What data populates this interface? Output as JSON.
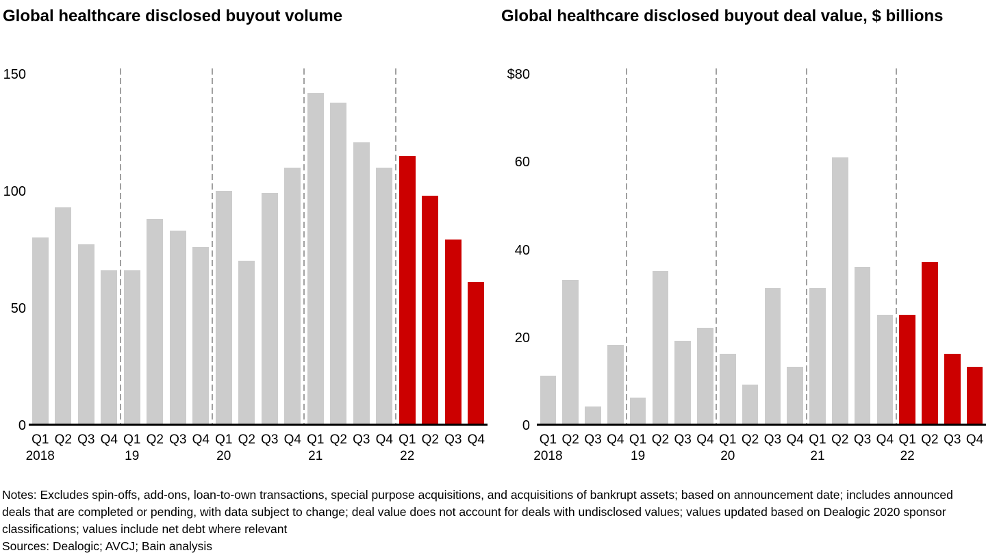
{
  "chart_data": [
    {
      "type": "bar",
      "title": "Global healthcare disclosed buyout volume",
      "ylabel": "",
      "xlabel": "",
      "ymax": 150,
      "grid": false,
      "yticks": [
        {
          "value": 0,
          "label": "0"
        },
        {
          "value": 50,
          "label": "50"
        },
        {
          "value": 100,
          "label": "100"
        },
        {
          "value": 150,
          "label": "150"
        }
      ],
      "quarter_labels": [
        "Q1",
        "Q2",
        "Q3",
        "Q4"
      ],
      "groups": [
        {
          "year": "2018",
          "values": [
            80,
            93,
            77,
            66
          ],
          "highlight": false
        },
        {
          "year": "19",
          "values": [
            66,
            88,
            83,
            76
          ],
          "highlight": false
        },
        {
          "year": "20",
          "values": [
            100,
            70,
            99,
            110
          ],
          "highlight": false
        },
        {
          "year": "21",
          "values": [
            142,
            138,
            121,
            110
          ],
          "highlight": false
        },
        {
          "year": "22",
          "values": [
            115,
            98,
            79,
            61
          ],
          "highlight": true
        }
      ]
    },
    {
      "type": "bar",
      "title": "Global healthcare disclosed buyout deal value, $ billions",
      "ylabel": "",
      "xlabel": "",
      "ymax": 80,
      "grid": false,
      "yticks": [
        {
          "value": 0,
          "label": "0"
        },
        {
          "value": 20,
          "label": "20"
        },
        {
          "value": 40,
          "label": "40"
        },
        {
          "value": 60,
          "label": "60"
        },
        {
          "value": 80,
          "label": "$80"
        }
      ],
      "quarter_labels": [
        "Q1",
        "Q2",
        "Q3",
        "Q4"
      ],
      "groups": [
        {
          "year": "2018",
          "values": [
            11,
            33,
            4,
            18
          ],
          "highlight": false
        },
        {
          "year": "19",
          "values": [
            6,
            35,
            19,
            22
          ],
          "highlight": false
        },
        {
          "year": "20",
          "values": [
            16,
            9,
            31,
            13
          ],
          "highlight": false
        },
        {
          "year": "21",
          "values": [
            31,
            61,
            36,
            25
          ],
          "highlight": false
        },
        {
          "year": "22",
          "values": [
            25,
            37,
            16,
            13
          ],
          "highlight": true
        }
      ]
    }
  ],
  "colors": {
    "bar_default": "#cccccc",
    "bar_highlight": "#cc0000",
    "year_separator": "#a0a0a0",
    "axis": "#000000"
  },
  "footer": {
    "notes": "Notes: Excludes spin-offs, add-ons, loan-to-own transactions, special purpose acquisitions, and acquisitions of bankrupt assets; based on announcement date; includes announced deals that are completed or pending, with data subject to change; deal value does not account for deals with undisclosed values; values updated based on Dealogic 2020 sponsor classifications; values include net debt where relevant",
    "sources": "Sources: Dealogic; AVCJ; Bain analysis"
  }
}
